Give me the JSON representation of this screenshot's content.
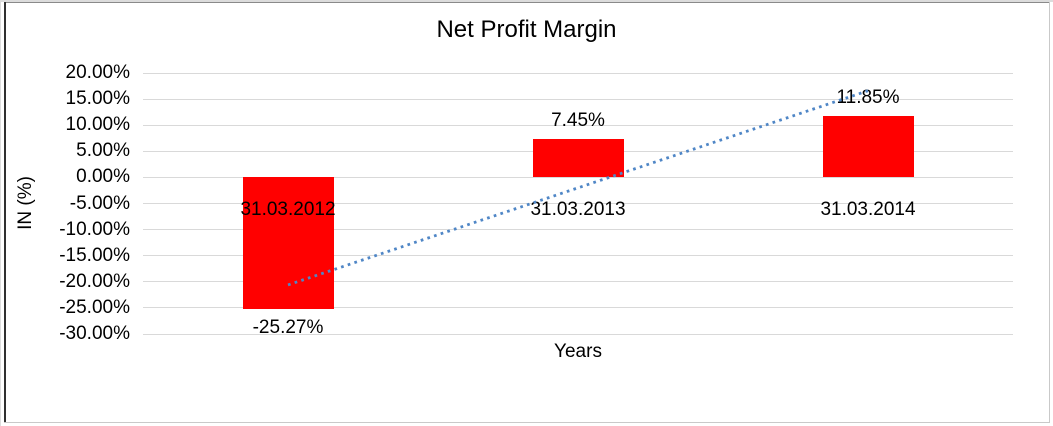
{
  "chart_data": {
    "type": "bar",
    "title": "Net Profit Margin",
    "xlabel": "Years",
    "ylabel": "IN (%)",
    "categories": [
      "31.03.2012",
      "31.03.2013",
      "31.03.2014"
    ],
    "values": [
      -25.27,
      7.45,
      11.85
    ],
    "data_labels": [
      "-25.27%",
      "7.45%",
      "11.85%"
    ],
    "ylim": [
      -30,
      20
    ],
    "ytick_step": 5,
    "ytick_labels": [
      "20.00%",
      "15.00%",
      "10.00%",
      "5.00%",
      "0.00%",
      "-5.00%",
      "-10.00%",
      "-15.00%",
      "-20.00%",
      "-25.00%",
      "-30.00%"
    ],
    "grid": true,
    "legend_position": "none",
    "bar_color": "#ff0000",
    "gridline_color": "#d9d9d9",
    "text_color": "#000000",
    "trendline": {
      "type": "linear",
      "style": "dotted",
      "color": "#4f86c6",
      "start_category_index": 0,
      "end_category_index": 2,
      "start_value_pct": -20.6,
      "end_value_pct": 16.6
    }
  }
}
